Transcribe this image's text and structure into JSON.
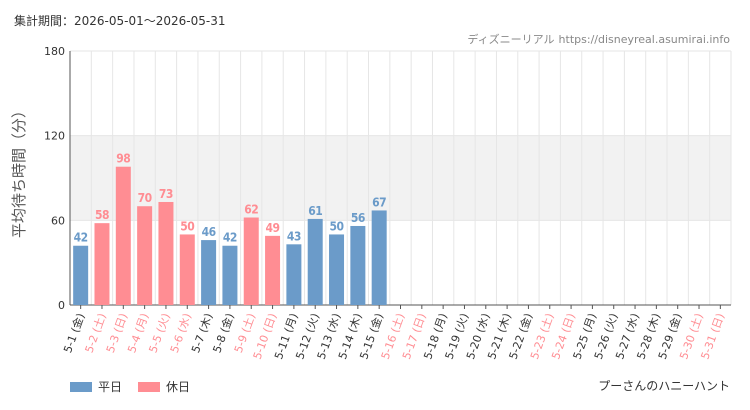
{
  "header": {
    "period": "集計期間：2026-05-01～2026-05-31",
    "site_name": "ディズニーリアル",
    "site_url": "https://disneyreal.asumirai.info"
  },
  "colors": {
    "weekday": "#6b9bc9",
    "holiday": "#ff8d93",
    "band": "#f2f2f2",
    "grid": "#e6e6e6"
  },
  "legend": {
    "weekday_label": "平日",
    "holiday_label": "休日"
  },
  "attraction_name": "プーさんのハニーハント",
  "chart_data": {
    "type": "bar",
    "title": "",
    "ylabel": "平均待ち時間（分）",
    "xlabel": "",
    "ylim": [
      0,
      180
    ],
    "yticks": [
      0,
      60,
      120,
      180
    ],
    "shaded_band": [
      60,
      120
    ],
    "grid": true,
    "categories": [
      "5-1 (金)",
      "5-2 (土)",
      "5-3 (日)",
      "5-4 (月)",
      "5-5 (火)",
      "5-6 (水)",
      "5-7 (木)",
      "5-8 (金)",
      "5-9 (土)",
      "5-10 (日)",
      "5-11 (月)",
      "5-12 (火)",
      "5-13 (水)",
      "5-14 (木)",
      "5-15 (金)",
      "5-16 (土)",
      "5-17 (日)",
      "5-18 (月)",
      "5-19 (火)",
      "5-20 (水)",
      "5-21 (木)",
      "5-22 (金)",
      "5-23 (土)",
      "5-24 (日)",
      "5-25 (月)",
      "5-26 (火)",
      "5-27 (水)",
      "5-28 (木)",
      "5-29 (金)",
      "5-30 (土)",
      "5-31 (日)"
    ],
    "holiday": [
      false,
      true,
      true,
      true,
      true,
      true,
      false,
      false,
      true,
      true,
      false,
      false,
      false,
      false,
      false,
      true,
      true,
      false,
      false,
      false,
      false,
      false,
      true,
      true,
      false,
      false,
      false,
      false,
      false,
      true,
      true
    ],
    "values": [
      42,
      58,
      98,
      70,
      73,
      50,
      46,
      42,
      62,
      49,
      43,
      61,
      50,
      56,
      67,
      null,
      null,
      null,
      null,
      null,
      null,
      null,
      null,
      null,
      null,
      null,
      null,
      null,
      null,
      null,
      null
    ]
  }
}
